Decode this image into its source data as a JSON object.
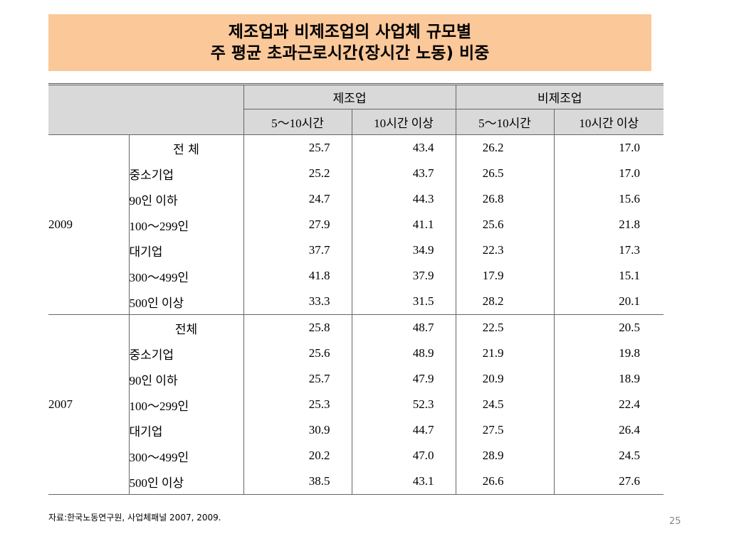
{
  "title": {
    "line1": "제조업과 비제조업의 사업체 규모별",
    "line2": "주 평균 초과근로시간(장시간 노동) 비중"
  },
  "table": {
    "header_groups": [
      "제조업",
      "비제조업"
    ],
    "sub_headers": [
      "5～10시간",
      "10시간 이상",
      "5～10시간",
      "10시간 이상"
    ],
    "groups": [
      {
        "year": "2009",
        "rows": [
          {
            "category": "전 체",
            "values": [
              "25.7",
              "43.4",
              "26.2",
              "17.0"
            ]
          },
          {
            "category": "중소기업",
            "values": [
              "25.2",
              "43.7",
              "26.5",
              "17.0"
            ]
          },
          {
            "category": "90인 이하",
            "values": [
              "24.7",
              "44.3",
              "26.8",
              "15.6"
            ]
          },
          {
            "category": "100～299인",
            "values": [
              "27.9",
              "41.1",
              "25.6",
              "21.8"
            ]
          },
          {
            "category": "대기업",
            "values": [
              "37.7",
              "34.9",
              "22.3",
              "17.3"
            ]
          },
          {
            "category": "300～499인",
            "values": [
              "41.8",
              "37.9",
              "17.9",
              "15.1"
            ]
          },
          {
            "category": "500인 이상",
            "values": [
              "33.3",
              "31.5",
              "28.2",
              "20.1"
            ]
          }
        ]
      },
      {
        "year": "2007",
        "rows": [
          {
            "category": "전체",
            "values": [
              "25.8",
              "48.7",
              "22.5",
              "20.5"
            ]
          },
          {
            "category": "중소기업",
            "values": [
              "25.6",
              "48.9",
              "21.9",
              "19.8"
            ]
          },
          {
            "category": "90인 이하",
            "values": [
              "25.7",
              "47.9",
              "20.9",
              "18.9"
            ]
          },
          {
            "category": "100～299인",
            "values": [
              "25.3",
              "52.3",
              "24.5",
              "22.4"
            ]
          },
          {
            "category": "대기업",
            "values": [
              "30.9",
              "44.7",
              "27.5",
              "26.4"
            ]
          },
          {
            "category": "300～499인",
            "values": [
              "20.2",
              "47.0",
              "28.9",
              "24.5"
            ]
          },
          {
            "category": "500인 이상",
            "values": [
              "38.5",
              "43.1",
              "26.6",
              "27.6"
            ]
          }
        ]
      }
    ]
  },
  "footnote": "자료:한국노동연구원, 사업체패널 2007, 2009.",
  "page_number": "25",
  "colors": {
    "title_bg": "#fbc89a",
    "header_bg": "#d9d9d9"
  }
}
